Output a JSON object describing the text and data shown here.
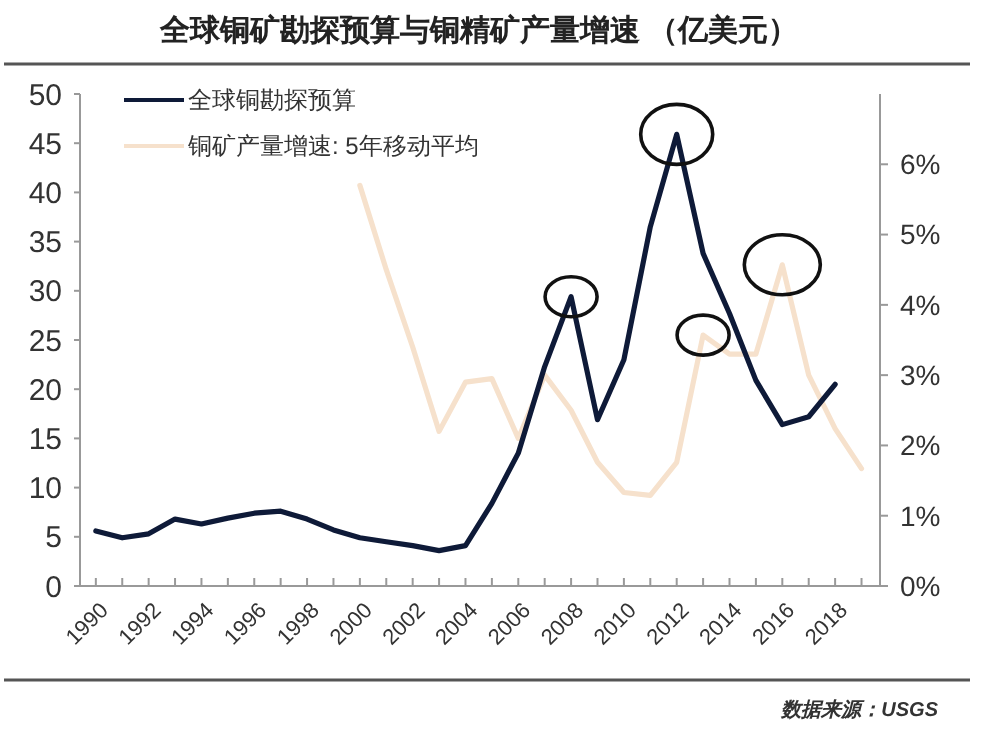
{
  "chart_data": {
    "type": "line",
    "title": "全球铜矿勘探预算与铜精矿产量增速 （亿美元）",
    "x": [
      1990,
      1991,
      1992,
      1993,
      1994,
      1995,
      1996,
      1997,
      1998,
      1999,
      2000,
      2001,
      2002,
      2003,
      2004,
      2005,
      2006,
      2007,
      2008,
      2009,
      2010,
      2011,
      2012,
      2013,
      2014,
      2015,
      2016,
      2017,
      2018
    ],
    "series": [
      {
        "name": "全球铜勘探预算",
        "color": "#0e1a38",
        "values": [
          5.6,
          4.9,
          5.3,
          6.8,
          6.3,
          6.9,
          7.4,
          7.6,
          6.8,
          5.7,
          4.9,
          4.5,
          4.1,
          3.6,
          4.1,
          8.4,
          13.5,
          22.3,
          29.4,
          16.9,
          23,
          36.5,
          45.9,
          33.8,
          27.7,
          20.9,
          16.4,
          17.2,
          20.5
        ]
      },
      {
        "name": "铜矿产量增速: 5年移动平均",
        "color": "#f6e1cc",
        "axis": "y2",
        "x": [
          2000,
          2001,
          2002,
          2003,
          2004,
          2005,
          2006,
          2007,
          2008,
          2009,
          2010,
          2011,
          2012,
          2013,
          2014,
          2015,
          2016,
          2017,
          2018,
          2019
        ],
        "values": [
          5.7,
          4.5,
          3.4,
          2.2,
          2.9,
          2.95,
          2.1,
          3.0,
          2.5,
          1.76,
          1.33,
          1.29,
          1.76,
          3.57,
          3.3,
          3.3,
          4.57,
          3.0,
          2.24,
          1.67
        ]
      }
    ],
    "xlim": [
      1989.4,
      2019.7
    ],
    "xticks": [
      1990,
      {
        "value": 1991,
        "label": null
      },
      1992,
      {
        "value": 1993,
        "label": null
      },
      1994,
      {
        "value": 1995,
        "label": null
      },
      1996,
      {
        "value": 1997,
        "label": null
      },
      1998,
      {
        "value": 1999,
        "label": null
      },
      2000,
      {
        "value": 2001,
        "label": null
      },
      2002,
      {
        "value": 2003,
        "label": null
      },
      2004,
      {
        "value": 2005,
        "label": null
      },
      2006,
      {
        "value": 2007,
        "label": null
      },
      2008,
      {
        "value": 2009,
        "label": null
      },
      2010,
      {
        "value": 2011,
        "label": null
      },
      2012,
      {
        "value": 2013,
        "label": null
      },
      2014,
      {
        "value": 2015,
        "label": null
      },
      2016,
      {
        "value": 2017,
        "label": null
      },
      2018,
      {
        "value": 2019,
        "label": null
      }
    ],
    "ylim": [
      0,
      50
    ],
    "yticks": [
      0,
      5,
      10,
      15,
      20,
      25,
      30,
      35,
      40,
      45,
      50
    ],
    "y2lim": [
      0,
      7
    ],
    "y2ticks": [
      {
        "value": 0,
        "label": "0%"
      },
      {
        "value": 1,
        "label": "1%"
      },
      {
        "value": 2,
        "label": "2%"
      },
      {
        "value": 3,
        "label": "3%"
      },
      {
        "value": 4,
        "label": "4%"
      },
      {
        "value": 5,
        "label": "5%"
      },
      {
        "value": 6,
        "label": "6%"
      }
    ],
    "legend": "top left",
    "grid": false,
    "marker": "none",
    "line_style": "solid",
    "annotations": [
      "数据来源：USGS"
    ]
  }
}
